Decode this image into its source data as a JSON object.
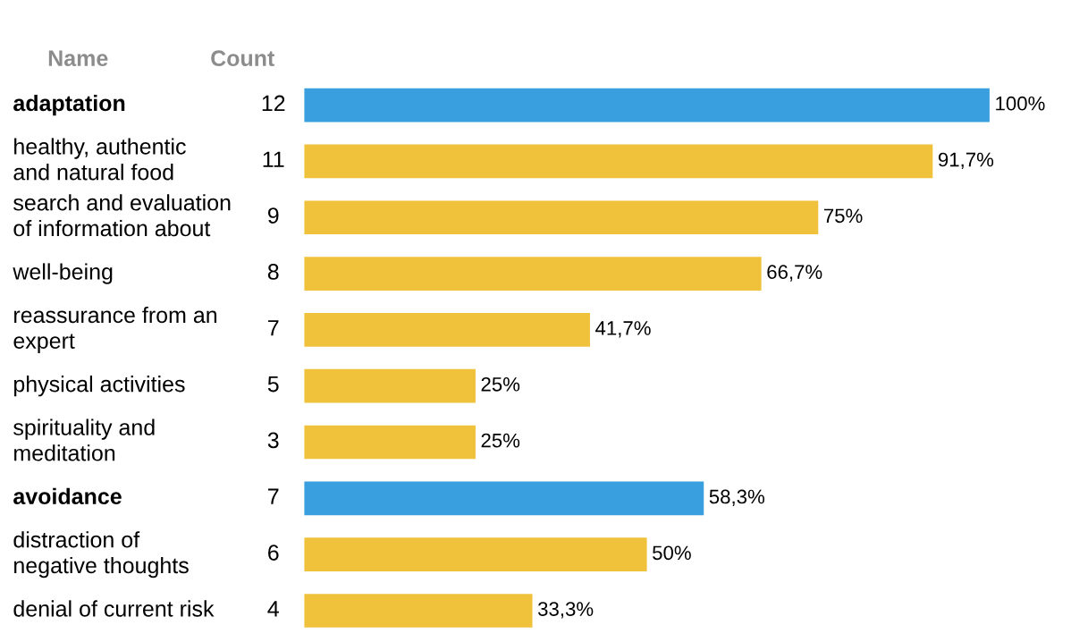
{
  "chart_data": {
    "type": "bar",
    "orientation": "horizontal",
    "categories": [
      "adaptation",
      "healthy, authentic\nand natural food",
      "search and evaluation\nof information about",
      "well-being",
      "reassurance from an\nexpert",
      "physical activities",
      "spirituality and\nmeditation",
      "avoidance",
      "distraction of\nnegative thoughts",
      "denial of current risk"
    ],
    "y2_categories": [
      "12",
      "11",
      "9",
      "8",
      "7",
      "5",
      "3",
      "7",
      "6",
      "4"
    ],
    "values": [
      100,
      91.7,
      75,
      66.7,
      41.7,
      25,
      25,
      58.3,
      50,
      33.3
    ],
    "value_labels": [
      "100%",
      "91,7%",
      "75%",
      "66,7%",
      "41,7%",
      "25%",
      "25%",
      "58,3%",
      "50%",
      "33,3%"
    ],
    "colors": [
      "#399fde",
      "#f0c23b",
      "#f0c23b",
      "#f0c23b",
      "#f0c23b",
      "#f0c23b",
      "#f0c23b",
      "#399fde",
      "#f0c23b",
      "#f0c23b"
    ],
    "annotations": [
      "Name",
      "Count"
    ],
    "legend": false
  }
}
